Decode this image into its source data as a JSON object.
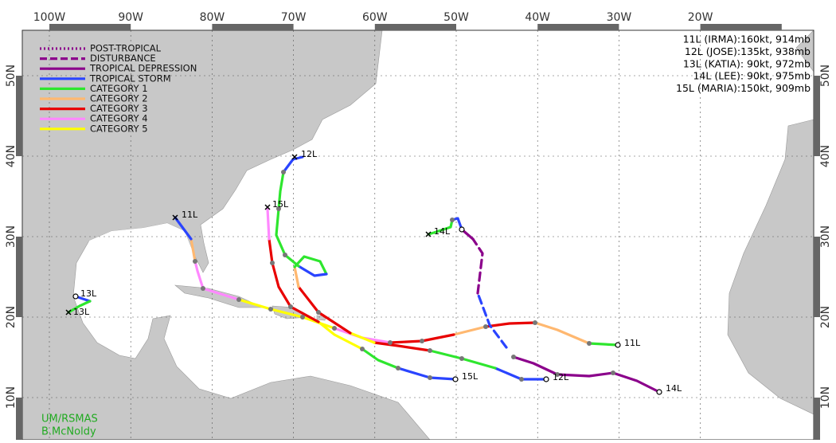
{
  "header": {
    "lon_labels": [
      "100W",
      "90W",
      "80W",
      "70W",
      "60W",
      "50W",
      "40W",
      "30W",
      "20W"
    ],
    "lat_labels": [
      "50N",
      "40N",
      "30N",
      "20N",
      "10N"
    ]
  },
  "legend": [
    "POST-TROPICAL",
    "DISTURBANCE",
    "TROPICAL DEPRESSION",
    "TROPICAL STORM",
    "CATEGORY 1",
    "CATEGORY 2",
    "CATEGORY 3",
    "CATEGORY 4",
    "CATEGORY 5"
  ],
  "intensity": [
    "11L (IRMA):160kt, 914mb",
    "12L (JOSE):135kt, 938mb",
    "13L (KATIA): 90kt, 972mb",
    "14L (LEE): 90kt, 975mb",
    "15L (MARIA):150kt, 909mb"
  ],
  "track_labels": {
    "irma_start": "11L",
    "irma_end": "11L",
    "jose_start": "12L",
    "jose_end": "12L",
    "katia_start": "13L",
    "katia_end": "13L",
    "lee_start": "14L",
    "lee_end": "14L",
    "maria_start": "15L",
    "maria_end": "15L"
  },
  "credit": [
    "UM/RSMAS",
    "B.McNoldy"
  ]
}
